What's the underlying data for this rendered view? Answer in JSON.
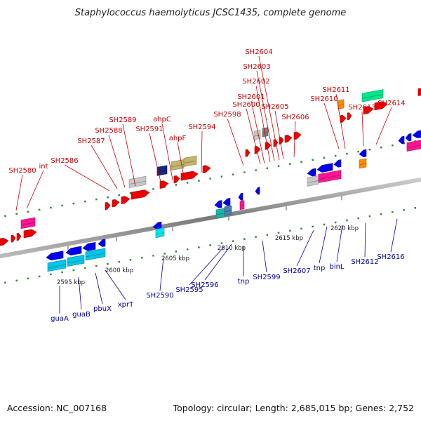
{
  "title": "Staphylococcus haemolyticus JCSC1435, complete genome",
  "footer": {
    "accession": "Accession: NC_007168",
    "summary": "Topology: circular; Length: 2,685,015 bp; Genes: 2,752"
  },
  "colors": {
    "forward_label": "#cc0000",
    "reverse_label": "#0000aa",
    "backbone": "#888888"
  },
  "ticks": [
    "2595 kbp",
    "2600 kbp",
    "2605 kbp",
    "2610 kbp",
    "2615 kbp",
    "2620 kbp"
  ],
  "forward_genes": [
    "SH2580",
    "int",
    "SH2586",
    "SH2587",
    "SH2588",
    "SH2589",
    "SH2591",
    "ahpC",
    "ahpF",
    "SH2594",
    "SH2598",
    "SH2600",
    "SH2601",
    "SH2602",
    "SH2603",
    "SH2604",
    "SH2605",
    "SH2606",
    "SH2610",
    "SH2611",
    "SH2613",
    "SH2614"
  ],
  "reverse_genes": [
    "guaA",
    "guaB",
    "pbuX",
    "xprT",
    "SH2590",
    "SH2595",
    "SH2596",
    "tnp",
    "SH2599",
    "SH2607",
    "tnp",
    "binL",
    "SH2612",
    "SH2616"
  ]
}
